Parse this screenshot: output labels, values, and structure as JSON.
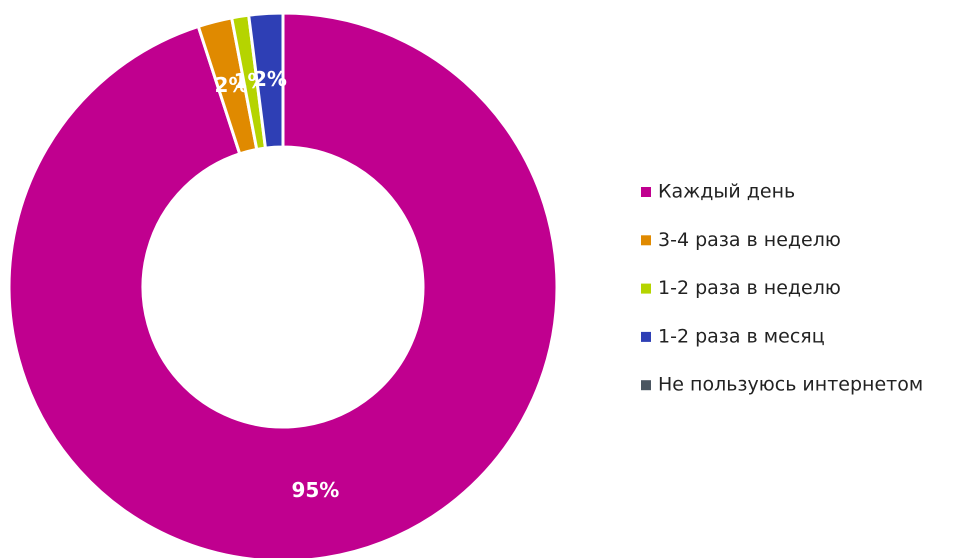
{
  "chart_data": {
    "type": "pie",
    "categories": [
      "Каждый день",
      "3-4 раза в неделю",
      "1-2 раза в неделю",
      "1-2 раза в месяц",
      "Не пользуюсь интернетом"
    ],
    "values": [
      95,
      2,
      1,
      2,
      0
    ],
    "value_labels": [
      "95%",
      "2%",
      "1%",
      "2%",
      null
    ],
    "colors": [
      "#c0008f",
      "#e08a00",
      "#b5d400",
      "#2e3fb5",
      "#4a5560"
    ],
    "donut": true,
    "legend": "right"
  }
}
